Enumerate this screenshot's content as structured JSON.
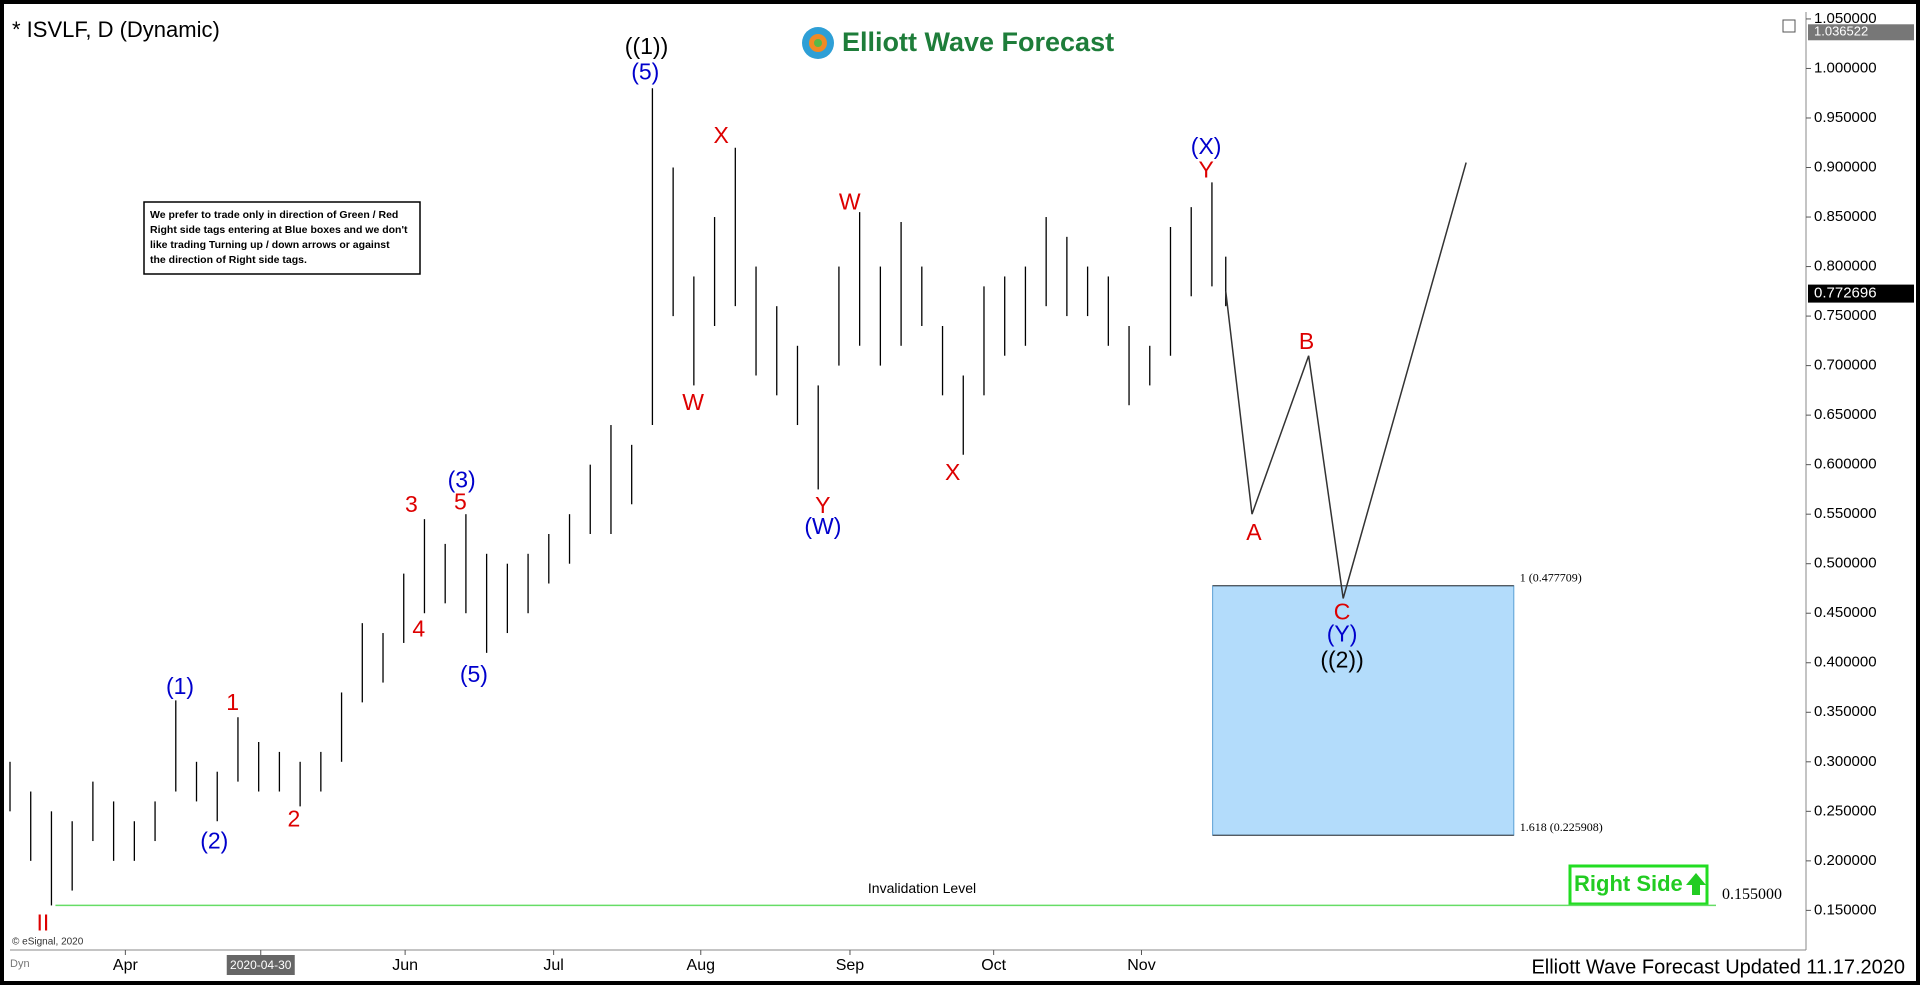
{
  "chart_data": {
    "type": "ohlc",
    "title": "* ISVLF, D (Dynamic)",
    "logo": "Elliott Wave Forecast",
    "note": [
      "We prefer to trade only in direction of Green / Red",
      "Right side tags entering at Blue boxes and we don't",
      "like trading Turning up / down arrows or against",
      "the direction of Right side tags."
    ],
    "footer": "Elliott Wave Forecast Updated 11.17.2020",
    "copyright": "© eSignal, 2020",
    "corner_label": "Dyn",
    "color": "#000000",
    "x": [
      0,
      3,
      6,
      9,
      12,
      15,
      18,
      21,
      24,
      27,
      30,
      33,
      36,
      39,
      42,
      45,
      48,
      51,
      54,
      57,
      60,
      63,
      66,
      69,
      72,
      75,
      78,
      81,
      84,
      87,
      90,
      93,
      96,
      99,
      102,
      105,
      108,
      111,
      114,
      117,
      120,
      123,
      126,
      129,
      132,
      135,
      138,
      141,
      144,
      147,
      150,
      153,
      156,
      159,
      162,
      165,
      168,
      171,
      174,
      176
    ],
    "high": [
      0.3,
      0.27,
      0.25,
      0.24,
      0.28,
      0.26,
      0.24,
      0.26,
      0.362,
      0.3,
      0.29,
      0.345,
      0.32,
      0.31,
      0.3,
      0.31,
      0.37,
      0.44,
      0.43,
      0.49,
      0.545,
      0.52,
      0.55,
      0.51,
      0.5,
      0.51,
      0.53,
      0.55,
      0.6,
      0.64,
      0.62,
      0.98,
      0.9,
      0.79,
      0.85,
      0.92,
      0.8,
      0.76,
      0.72,
      0.68,
      0.8,
      0.855,
      0.8,
      0.845,
      0.8,
      0.74,
      0.69,
      0.78,
      0.79,
      0.8,
      0.85,
      0.83,
      0.8,
      0.79,
      0.74,
      0.72,
      0.84,
      0.86,
      0.885,
      0.81
    ],
    "low": [
      0.25,
      0.2,
      0.155,
      0.17,
      0.22,
      0.2,
      0.2,
      0.22,
      0.27,
      0.26,
      0.24,
      0.28,
      0.27,
      0.27,
      0.255,
      0.27,
      0.3,
      0.36,
      0.38,
      0.42,
      0.45,
      0.46,
      0.45,
      0.41,
      0.43,
      0.45,
      0.48,
      0.5,
      0.53,
      0.53,
      0.56,
      0.64,
      0.75,
      0.68,
      0.74,
      0.76,
      0.69,
      0.67,
      0.64,
      0.575,
      0.7,
      0.72,
      0.7,
      0.72,
      0.74,
      0.67,
      0.61,
      0.67,
      0.71,
      0.72,
      0.76,
      0.75,
      0.75,
      0.72,
      0.66,
      0.68,
      0.71,
      0.77,
      0.78,
      0.76
    ],
    "projection": {
      "x": [
        176,
        179.8,
        188,
        193,
        210.8
      ],
      "values": [
        0.775,
        0.55,
        0.71,
        0.465,
        0.905
      ],
      "color": "#333333"
    },
    "last_price": 0.772696,
    "top_price": 1.036522,
    "box": {
      "x": [
        174.1,
        217.7
      ],
      "color": "#b3dcfb",
      "levels": [
        {
          "value": 0.477709,
          "label": "1 (0.477709)"
        },
        {
          "value": 0.225908,
          "label": "1.618 (0.225908)"
        }
      ]
    },
    "invalidation": {
      "value": 0.155,
      "label": "0.155000",
      "text": "Invalidation Level",
      "color": "#66dd66"
    },
    "right_side": "Right Side",
    "annotations": [
      {
        "text": "((1))",
        "color": "#000000"
      },
      {
        "text": "(5)",
        "color": "#0000cc"
      },
      {
        "text": "X",
        "color": "#dd0000"
      },
      {
        "text": "W",
        "color": "#dd0000"
      },
      {
        "text": "W",
        "color": "#dd0000"
      },
      {
        "text": "Y",
        "color": "#dd0000"
      },
      {
        "text": "(W)",
        "color": "#0000cc"
      },
      {
        "text": "X",
        "color": "#dd0000"
      },
      {
        "text": "(X)",
        "color": "#0000cc"
      },
      {
        "text": "Y",
        "color": "#dd0000"
      },
      {
        "text": "B",
        "color": "#dd0000"
      },
      {
        "text": "A",
        "color": "#dd0000"
      },
      {
        "text": "C",
        "color": "#dd0000"
      },
      {
        "text": "(Y)",
        "color": "#0000cc"
      },
      {
        "text": "((2))",
        "color": "#000000"
      },
      {
        "text": "(1)",
        "color": "#0000cc"
      },
      {
        "text": "(2)",
        "color": "#0000cc"
      },
      {
        "text": "1",
        "color": "#dd0000"
      },
      {
        "text": "2",
        "color": "#dd0000"
      },
      {
        "text": "3",
        "color": "#dd0000"
      },
      {
        "text": "4",
        "color": "#dd0000"
      },
      {
        "text": "5",
        "color": "#dd0000"
      },
      {
        "text": "(3)",
        "color": "#0000cc"
      },
      {
        "text": "(5)",
        "color": "#0000cc"
      },
      {
        "text": "II",
        "color": "#dd0000"
      }
    ],
    "xlim": [
      0,
      260
    ],
    "ylim": [
      0.11,
      1.057
    ],
    "xticks": [
      {
        "value": 16.7,
        "label": "Apr"
      },
      {
        "value": 36.3,
        "label": "2020-04-30"
      },
      {
        "value": 57.2,
        "label": "Jun"
      },
      {
        "value": 78.7,
        "label": "Jul"
      },
      {
        "value": 100,
        "label": "Aug"
      },
      {
        "value": 121.6,
        "label": "Sep"
      },
      {
        "value": 142.4,
        "label": "Oct"
      },
      {
        "value": 163.8,
        "label": "Nov"
      }
    ],
    "yticks": [
      {
        "value": 0.15,
        "label": "0.150000"
      },
      {
        "value": 0.2,
        "label": "0.200000"
      },
      {
        "value": 0.25,
        "label": "0.250000"
      },
      {
        "value": 0.3,
        "label": "0.300000"
      },
      {
        "value": 0.35,
        "label": "0.350000"
      },
      {
        "value": 0.4,
        "label": "0.400000"
      },
      {
        "value": 0.45,
        "label": "0.450000"
      },
      {
        "value": 0.5,
        "label": "0.500000"
      },
      {
        "value": 0.55,
        "label": "0.550000"
      },
      {
        "value": 0.6,
        "label": "0.600000"
      },
      {
        "value": 0.65,
        "label": "0.650000"
      },
      {
        "value": 0.7,
        "label": "0.700000"
      },
      {
        "value": 0.75,
        "label": "0.750000"
      },
      {
        "value": 0.8,
        "label": "0.800000"
      },
      {
        "value": 0.85,
        "label": "0.850000"
      },
      {
        "value": 0.9,
        "label": "0.900000"
      },
      {
        "value": 0.95,
        "label": "0.950000"
      },
      {
        "value": 1.0,
        "label": "1.000000"
      },
      {
        "value": 1.05,
        "label": "1.050000"
      }
    ]
  }
}
